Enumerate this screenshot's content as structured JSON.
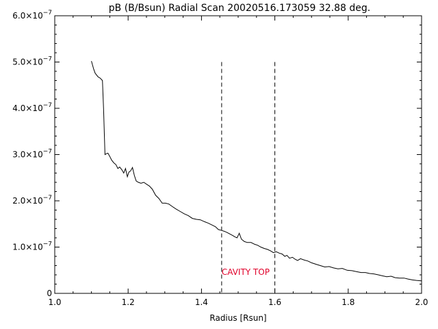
{
  "chart_data": {
    "type": "line",
    "title": "pB (B/Bsun) Radial Scan 20020516.173059 32.88 deg.",
    "xlabel": "Radius [Rsun]",
    "ylabel": "",
    "xlim": [
      1.0,
      2.0
    ],
    "ylim": [
      0,
      6e-07
    ],
    "xticks": [
      {
        "value": 1.0,
        "label": "1.0"
      },
      {
        "value": 1.2,
        "label": "1.2"
      },
      {
        "value": 1.4,
        "label": "1.4"
      },
      {
        "value": 1.6,
        "label": "1.6"
      },
      {
        "value": 1.8,
        "label": "1.8"
      },
      {
        "value": 2.0,
        "label": "2.0"
      }
    ],
    "yticks": [
      {
        "value": 0,
        "mant": "0",
        "exp": ""
      },
      {
        "value": 1e-07,
        "mant": "1.0×10",
        "exp": "−7"
      },
      {
        "value": 2e-07,
        "mant": "2.0×10",
        "exp": "−7"
      },
      {
        "value": 3e-07,
        "mant": "3.0×10",
        "exp": "−7"
      },
      {
        "value": 4e-07,
        "mant": "4.0×10",
        "exp": "−7"
      },
      {
        "value": 5e-07,
        "mant": "5.0×10",
        "exp": "−7"
      },
      {
        "value": 6e-07,
        "mant": "6.0×10",
        "exp": "−7"
      }
    ],
    "grid": false,
    "series": [
      {
        "x": [
          1.1,
          1.106,
          1.11,
          1.118,
          1.124,
          1.13,
          1.133,
          1.137,
          1.141,
          1.145,
          1.15,
          1.155,
          1.161,
          1.167,
          1.172,
          1.177,
          1.183,
          1.188,
          1.193,
          1.198,
          1.202,
          1.207,
          1.212,
          1.217,
          1.222,
          1.228,
          1.235,
          1.243,
          1.25,
          1.258,
          1.266,
          1.275,
          1.284,
          1.293,
          1.302,
          1.311,
          1.32,
          1.331,
          1.342,
          1.353,
          1.364,
          1.375,
          1.386,
          1.397,
          1.408,
          1.418,
          1.428,
          1.438,
          1.446,
          1.455,
          1.463,
          1.471,
          1.478,
          1.485,
          1.491,
          1.497,
          1.503,
          1.509,
          1.517,
          1.525,
          1.535,
          1.545,
          1.553,
          1.562,
          1.571,
          1.58,
          1.588,
          1.596,
          1.604,
          1.612,
          1.62,
          1.627,
          1.633,
          1.64,
          1.648,
          1.655,
          1.662,
          1.67,
          1.68,
          1.69,
          1.7,
          1.712,
          1.724,
          1.736,
          1.748,
          1.76,
          1.772,
          1.784,
          1.797,
          1.81,
          1.822,
          1.835,
          1.847,
          1.858,
          1.87,
          1.882,
          1.893,
          1.905,
          1.917,
          1.928,
          1.94,
          1.952,
          1.963,
          1.975,
          1.986,
          2.0
        ],
        "y": [
          5.02e-07,
          4.85e-07,
          4.76e-07,
          4.68e-07,
          4.65e-07,
          4.6e-07,
          4e-07,
          3e-07,
          3.02e-07,
          3.03e-07,
          2.96e-07,
          2.88e-07,
          2.82e-07,
          2.78e-07,
          2.7e-07,
          2.73e-07,
          2.67e-07,
          2.6e-07,
          2.7e-07,
          2.52e-07,
          2.62e-07,
          2.65e-07,
          2.72e-07,
          2.55e-07,
          2.43e-07,
          2.4e-07,
          2.38e-07,
          2.4e-07,
          2.36e-07,
          2.32e-07,
          2.25e-07,
          2.12e-07,
          2.05e-07,
          1.95e-07,
          1.95e-07,
          1.93e-07,
          1.88e-07,
          1.82e-07,
          1.77e-07,
          1.72e-07,
          1.68e-07,
          1.62e-07,
          1.6e-07,
          1.59e-07,
          1.55e-07,
          1.52e-07,
          1.48e-07,
          1.44e-07,
          1.38e-07,
          1.36e-07,
          1.34e-07,
          1.31e-07,
          1.28e-07,
          1.25e-07,
          1.22e-07,
          1.2e-07,
          1.3e-07,
          1.17e-07,
          1.12e-07,
          1.1e-07,
          1.1e-07,
          1.06e-07,
          1.04e-07,
          1e-07,
          9.7e-08,
          9.5e-08,
          9.2e-08,
          8.8e-08,
          9e-08,
          8.7e-08,
          8.5e-08,
          8e-08,
          8.2e-08,
          7.6e-08,
          7.8e-08,
          7.4e-08,
          7.1e-08,
          7.5e-08,
          7.2e-08,
          7e-08,
          6.6e-08,
          6.3e-08,
          6e-08,
          5.7e-08,
          5.8e-08,
          5.5e-08,
          5.3e-08,
          5.4e-08,
          5e-08,
          4.9e-08,
          4.7e-08,
          4.5e-08,
          4.5e-08,
          4.3e-08,
          4.2e-08,
          4e-08,
          3.8e-08,
          3.6e-08,
          3.7e-08,
          3.4e-08,
          3.3e-08,
          3.3e-08,
          3.1e-08,
          2.9e-08,
          2.8e-08,
          2.7e-08
        ]
      }
    ],
    "markers": [
      {
        "x": 1.455,
        "y_top": 5e-07
      },
      {
        "x": 1.6,
        "y_top": 5e-07
      }
    ],
    "annotation": {
      "text": "CAVITY TOP",
      "x": 1.455,
      "y": 4e-08,
      "color": "#e0002a"
    },
    "colors": {
      "line": "#000000",
      "marker": "#000000",
      "annotation": "#e0002a"
    }
  }
}
